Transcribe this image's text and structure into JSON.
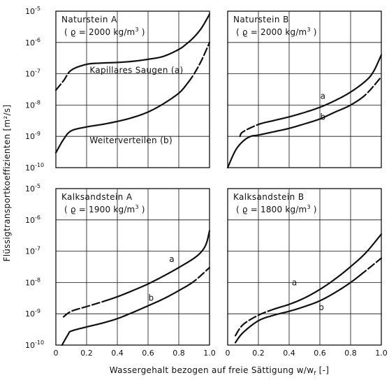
{
  "chart_data": {
    "type": "line",
    "ylabel": "Flüssigtransportkoeffizienten [m²/s]",
    "xlabel": "Wassergehalt bezogen auf freie Sättigung w/w",
    "xlabel_sub": "f",
    "xlabel_unit": " [-]",
    "x_ticks": [
      "0",
      "0.2",
      "0.4",
      "0.6",
      "0.8",
      "1.0"
    ],
    "y_ticks": [
      {
        "base": "10",
        "exp": "-10"
      },
      {
        "base": "10",
        "exp": "-9"
      },
      {
        "base": "10",
        "exp": "-8"
      },
      {
        "base": "10",
        "exp": "-7"
      },
      {
        "base": "10",
        "exp": "-6"
      },
      {
        "base": "10",
        "exp": "-5"
      }
    ],
    "xlim": [
      0,
      1.0
    ],
    "ylim": [
      1e-10,
      1e-05
    ],
    "y_scale": "log",
    "grid": true,
    "panels": [
      {
        "title": "Naturstein A",
        "subtitle": "( ϱ = 2000 kg/m",
        "subtitle_exp": "3",
        "subtitle_close": " )",
        "series": [
          {
            "label": "Kapillares Saugen (a)",
            "x": [
              0.0,
              0.05,
              0.1,
              0.2,
              0.3,
              0.4,
              0.5,
              0.6,
              0.7,
              0.8,
              0.85,
              0.9,
              0.95,
              1.0
            ],
            "y": [
              3e-08,
              6e-08,
              1.3e-07,
              2e-07,
              2.2e-07,
              2.3e-07,
              2.5e-07,
              2.9e-07,
              3.6e-07,
              6e-07,
              9e-07,
              1.5e-06,
              3e-06,
              8e-06
            ],
            "dashed_x": [
              [
                0.0,
                0.12
              ]
            ]
          },
          {
            "label": "Weiterverteilen (b)",
            "x": [
              0.0,
              0.05,
              0.1,
              0.2,
              0.3,
              0.4,
              0.5,
              0.6,
              0.7,
              0.8,
              0.85,
              0.9,
              0.95,
              1.0
            ],
            "y": [
              3e-10,
              8e-10,
              1.5e-09,
              2e-09,
              2.4e-09,
              3e-09,
              4e-09,
              6e-09,
              1.1e-08,
              2.4e-08,
              4.5e-08,
              1e-07,
              2.8e-07,
              1e-06
            ],
            "dashed_x": [
              [
                0.86,
                1.0
              ]
            ]
          }
        ]
      },
      {
        "title": "Naturstein B",
        "subtitle": "( ϱ = 2000 kg/m",
        "subtitle_exp": "3",
        "subtitle_close": " )",
        "series": [
          {
            "label": "a",
            "x": [
              0.08,
              0.1,
              0.2,
              0.3,
              0.4,
              0.5,
              0.6,
              0.7,
              0.8,
              0.9,
              0.95,
              1.0
            ],
            "y": [
              1e-09,
              1.4e-09,
              2.4e-09,
              3.2e-09,
              4.2e-09,
              5.8e-09,
              8.5e-09,
              1.4e-08,
              2.6e-08,
              6e-08,
              1.2e-07,
              4e-07
            ],
            "dashed_x": [
              [
                0.08,
                0.2
              ]
            ]
          },
          {
            "label": "b",
            "x": [
              0.0,
              0.05,
              0.1,
              0.15,
              0.2,
              0.3,
              0.4,
              0.5,
              0.6,
              0.7,
              0.8,
              0.9,
              1.0
            ],
            "y": [
              1e-10,
              3.5e-10,
              7e-10,
              1e-09,
              1.1e-09,
              1.4e-09,
              1.8e-09,
              2.5e-09,
              3.6e-09,
              6e-09,
              1e-08,
              2.2e-08,
              8e-08
            ],
            "dashed_x": [
              [
                0.86,
                1.0
              ]
            ]
          }
        ]
      },
      {
        "title": "Kalksandstein A",
        "subtitle": "( ϱ = 1900 kg/m",
        "subtitle_exp": "3",
        "subtitle_close": " )",
        "series": [
          {
            "label": "a",
            "x": [
              0.05,
              0.1,
              0.2,
              0.3,
              0.4,
              0.5,
              0.6,
              0.7,
              0.8,
              0.9,
              0.95,
              0.98,
              1.0
            ],
            "y": [
              8e-10,
              1.2e-09,
              1.7e-09,
              2.4e-09,
              3.5e-09,
              5.5e-09,
              9e-09,
              1.6e-08,
              3e-08,
              6e-08,
              1e-07,
              1.8e-07,
              4.5e-07
            ],
            "dashed_x": [
              [
                0.05,
                0.35
              ]
            ]
          },
          {
            "label": "b",
            "x": [
              0.04,
              0.08,
              0.1,
              0.2,
              0.3,
              0.4,
              0.5,
              0.6,
              0.7,
              0.8,
              0.9,
              1.0
            ],
            "y": [
              1e-10,
              2.2e-10,
              2.8e-10,
              3.8e-10,
              5e-10,
              7e-10,
              1.1e-09,
              1.8e-09,
              3e-09,
              5.5e-09,
              1.1e-08,
              3e-08
            ],
            "dashed_x": [
              [
                0.87,
                1.0
              ]
            ]
          }
        ]
      },
      {
        "title": "Kalksandstein B",
        "subtitle": "( ϱ = 1800 kg/m",
        "subtitle_exp": "3",
        "subtitle_close": " )",
        "series": [
          {
            "label": "a",
            "x": [
              0.05,
              0.1,
              0.2,
              0.3,
              0.4,
              0.5,
              0.6,
              0.7,
              0.8,
              0.9,
              1.0
            ],
            "y": [
              2e-10,
              4.5e-10,
              9e-10,
              1.4e-09,
              2e-09,
              3.2e-09,
              6e-09,
              1.3e-08,
              3.2e-08,
              9e-08,
              3.5e-07
            ],
            "dashed_x": [
              [
                0.05,
                0.3
              ]
            ]
          },
          {
            "label": "b",
            "x": [
              0.05,
              0.1,
              0.2,
              0.3,
              0.4,
              0.5,
              0.6,
              0.7,
              0.8,
              0.9,
              1.0
            ],
            "y": [
              1.2e-10,
              2.5e-10,
              6e-10,
              9e-10,
              1.2e-09,
              1.7e-09,
              2.6e-09,
              4.8e-09,
              1e-08,
              2.4e-08,
              6e-08
            ],
            "dashed_x": [
              [
                0.86,
                1.0
              ]
            ]
          }
        ]
      }
    ]
  }
}
